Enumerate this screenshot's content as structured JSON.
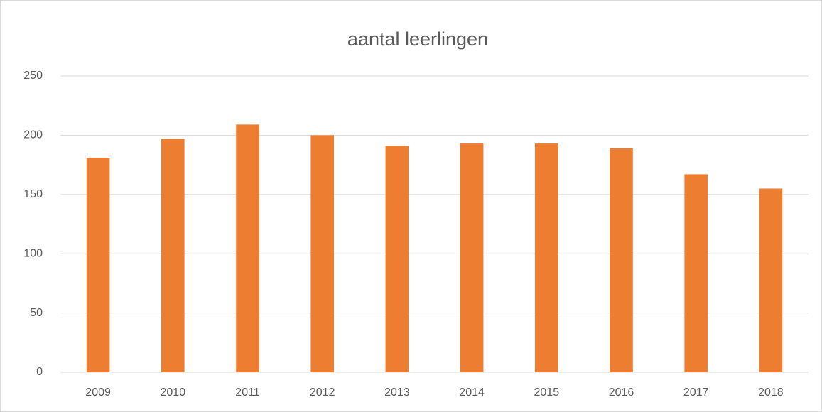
{
  "chart_data": {
    "type": "bar",
    "title": "aantal leerlingen",
    "categories": [
      "2009",
      "2010",
      "2011",
      "2012",
      "2013",
      "2014",
      "2015",
      "2016",
      "2017",
      "2018"
    ],
    "values": [
      181,
      197,
      209,
      200,
      191,
      193,
      193,
      189,
      167,
      155
    ],
    "color": "#ed7d31",
    "ylim": [
      0,
      250
    ],
    "yticks": [
      0,
      50,
      100,
      150,
      200,
      250
    ],
    "grid": true
  }
}
